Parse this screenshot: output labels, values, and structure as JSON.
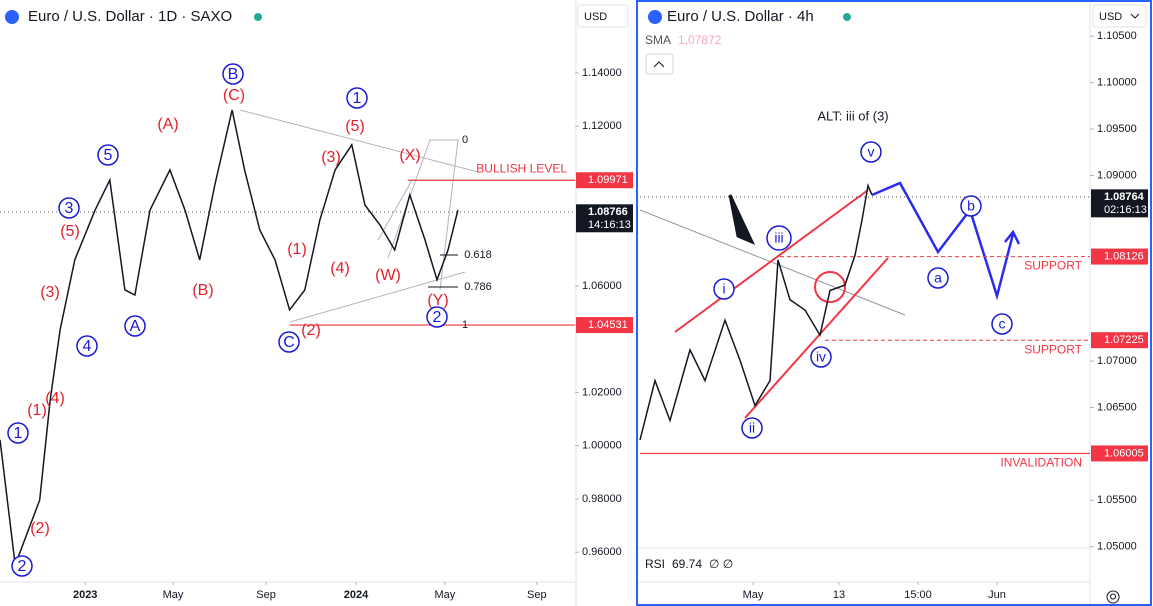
{
  "chart_data": [
    {
      "type": "line",
      "title": "Euro / U.S. Dollar · 1D · SAXO",
      "currency": "USD",
      "color": "#131722",
      "x": [
        0,
        2.9,
        7.6,
        9.6,
        11.5,
        14.3,
        18.2,
        21.0,
        23.9,
        25.8,
        28.7,
        32.5,
        35.4,
        38.2,
        41.1,
        44.4,
        46.8,
        49.7,
        52.6,
        55.4,
        58.3,
        61.2,
        64.1,
        67.3,
        69.8,
        72.7,
        75.5,
        78.4,
        81.3,
        83.6,
        85.7,
        87.6
      ],
      "values": [
        1.0022,
        0.9552,
        0.9796,
        1.0172,
        1.0435,
        1.0698,
        1.0885,
        1.0998,
        1.0585,
        1.0566,
        1.0885,
        1.1036,
        1.0885,
        1.0698,
        1.0979,
        1.1261,
        1.1036,
        1.081,
        1.0698,
        1.051,
        1.0585,
        1.0848,
        1.1036,
        1.113,
        1.0904,
        1.0829,
        1.0735,
        1.0942,
        1.0773,
        1.0623,
        1.0735,
        1.0885
      ],
      "xlim": [
        0,
        110
      ],
      "ylim": [
        0.9488,
        1.1674
      ],
      "xticks": [
        {
          "value": 16.3,
          "label": "2023"
        },
        {
          "value": 33.1,
          "label": "May"
        },
        {
          "value": 50.9,
          "label": "Sep"
        },
        {
          "value": 68.1,
          "label": "2024"
        },
        {
          "value": 85.1,
          "label": "May"
        },
        {
          "value": 102.7,
          "label": "Sep"
        }
      ],
      "yticks": [
        {
          "value": 1.14,
          "label": "1.14000"
        },
        {
          "value": 1.12,
          "label": "1.12000"
        },
        {
          "value": 1.06,
          "label": "1.06000"
        },
        {
          "value": 1.02,
          "label": "1.02000"
        },
        {
          "value": 1.0,
          "label": "1.00000"
        },
        {
          "value": 0.98,
          "label": "0.98000"
        },
        {
          "value": 0.96,
          "label": "0.96000"
        }
      ],
      "last_price": 1.08766,
      "countdown": "14:16:13",
      "levels": [
        {
          "value": 1.09971,
          "name": "BULLISH LEVEL"
        },
        {
          "value": 1.04531
        }
      ],
      "fib_labels": [
        0,
        0.618,
        0.786,
        1
      ],
      "annotations": [
        {
          "text": "B",
          "circled": true,
          "color": "#1a1ad6"
        },
        {
          "text": "(C)",
          "circled": false,
          "color": "#e3212c"
        },
        {
          "text": "1",
          "circled": true,
          "color": "#1a1ad6"
        },
        {
          "text": "(A)",
          "circled": false,
          "color": "#e3212c"
        },
        {
          "text": "(5)",
          "circled": false,
          "color": "#e3212c"
        },
        {
          "text": "5",
          "circled": true,
          "color": "#1a1ad6"
        },
        {
          "text": "(3)",
          "circled": false,
          "color": "#e3212c"
        },
        {
          "text": "(X)",
          "circled": false,
          "color": "#e3212c"
        },
        {
          "text": "3",
          "circled": true,
          "color": "#1a1ad6"
        },
        {
          "text": "(5)",
          "circled": false,
          "color": "#e3212c"
        },
        {
          "text": "(1)",
          "circled": false,
          "color": "#e3212c"
        },
        {
          "text": "(4)",
          "circled": false,
          "color": "#e3212c"
        },
        {
          "text": "(W)",
          "circled": false,
          "color": "#e3212c"
        },
        {
          "text": "(B)",
          "circled": false,
          "color": "#e3212c"
        },
        {
          "text": "(3)",
          "circled": false,
          "color": "#e3212c"
        },
        {
          "text": "(Y)",
          "circled": false,
          "color": "#e3212c"
        },
        {
          "text": "2",
          "circled": true,
          "color": "#1a1ad6"
        },
        {
          "text": "A",
          "circled": true,
          "color": "#1a1ad6"
        },
        {
          "text": "(2)",
          "circled": false,
          "color": "#e3212c"
        },
        {
          "text": "C",
          "circled": true,
          "color": "#1a1ad6"
        },
        {
          "text": "4",
          "circled": true,
          "color": "#1a1ad6"
        },
        {
          "text": "(4)",
          "circled": false,
          "color": "#e3212c"
        },
        {
          "text": "(1)",
          "circled": false,
          "color": "#e3212c"
        },
        {
          "text": "1",
          "circled": true,
          "color": "#1a1ad6"
        },
        {
          "text": "(2)",
          "circled": false,
          "color": "#e3212c"
        },
        {
          "text": "2",
          "circled": true,
          "color": "#1a1ad6"
        }
      ]
    },
    {
      "type": "line",
      "title": "Euro / U.S. Dollar · 4h",
      "currency": "USD",
      "color": "#131722",
      "x": [
        0.5,
        4.25,
        8,
        13,
        16.75,
        21.75,
        25.5,
        29.25,
        33,
        35,
        38,
        41.75,
        45.5,
        48,
        51.75,
        54.25,
        56,
        57.5,
        58.5
      ],
      "values": [
        1.0615,
        1.0679,
        1.0636,
        1.0712,
        1.0679,
        1.0744,
        1.0701,
        1.0652,
        1.0679,
        1.0809,
        1.0766,
        1.0755,
        1.0728,
        1.0776,
        1.0782,
        1.0814,
        1.0852,
        1.0889,
        1.0879
      ],
      "xlim": [
        0,
        113
      ],
      "ylim": [
        1.0462,
        1.1089
      ],
      "xticks": [
        {
          "value": 28.75,
          "label": "May"
        },
        {
          "value": 50.25,
          "label": "13"
        },
        {
          "value": 70,
          "label": "15:00"
        },
        {
          "value": 89.75,
          "label": "Jun"
        }
      ],
      "yticks": [
        {
          "value": 1.105,
          "label": "1.10500"
        },
        {
          "value": 1.1,
          "label": "1.10000"
        },
        {
          "value": 1.095,
          "label": "1.09500"
        },
        {
          "value": 1.09,
          "label": "1.09000"
        },
        {
          "value": 1.07,
          "label": "1.07000"
        },
        {
          "value": 1.065,
          "label": "1.06500"
        },
        {
          "value": 1.055,
          "label": "1.05500"
        },
        {
          "value": 1.05,
          "label": "1.05000"
        }
      ],
      "last_price": 1.08764,
      "countdown": "02:16:13",
      "levels": [
        {
          "value": 1.08126,
          "name": "SUPPORT"
        },
        {
          "value": 1.07225,
          "name": "SUPPORT"
        },
        {
          "value": 1.06005,
          "name": "INVALIDATION"
        }
      ],
      "indicator": {
        "name": "SMA",
        "value": 1.07872
      },
      "rsi": {
        "name": "RSI",
        "value": 69.74,
        "symbols": "∅ ∅"
      },
      "annotations": [
        {
          "text": "ALT: iii of (3)",
          "circled": false,
          "color": "#131722"
        },
        {
          "text": "v",
          "circled": true,
          "color": "#1a1ad6"
        },
        {
          "text": "b",
          "circled": true,
          "color": "#1a1ad6"
        },
        {
          "text": "iii",
          "circled": true,
          "color": "#1a1ad6"
        },
        {
          "text": "a",
          "circled": true,
          "color": "#1a1ad6"
        },
        {
          "text": "i",
          "circled": true,
          "color": "#1a1ad6"
        },
        {
          "text": "c",
          "circled": true,
          "color": "#1a1ad6"
        },
        {
          "text": "iv",
          "circled": true,
          "color": "#1a1ad6"
        },
        {
          "text": "ii",
          "circled": true,
          "color": "#1a1ad6"
        }
      ]
    }
  ]
}
